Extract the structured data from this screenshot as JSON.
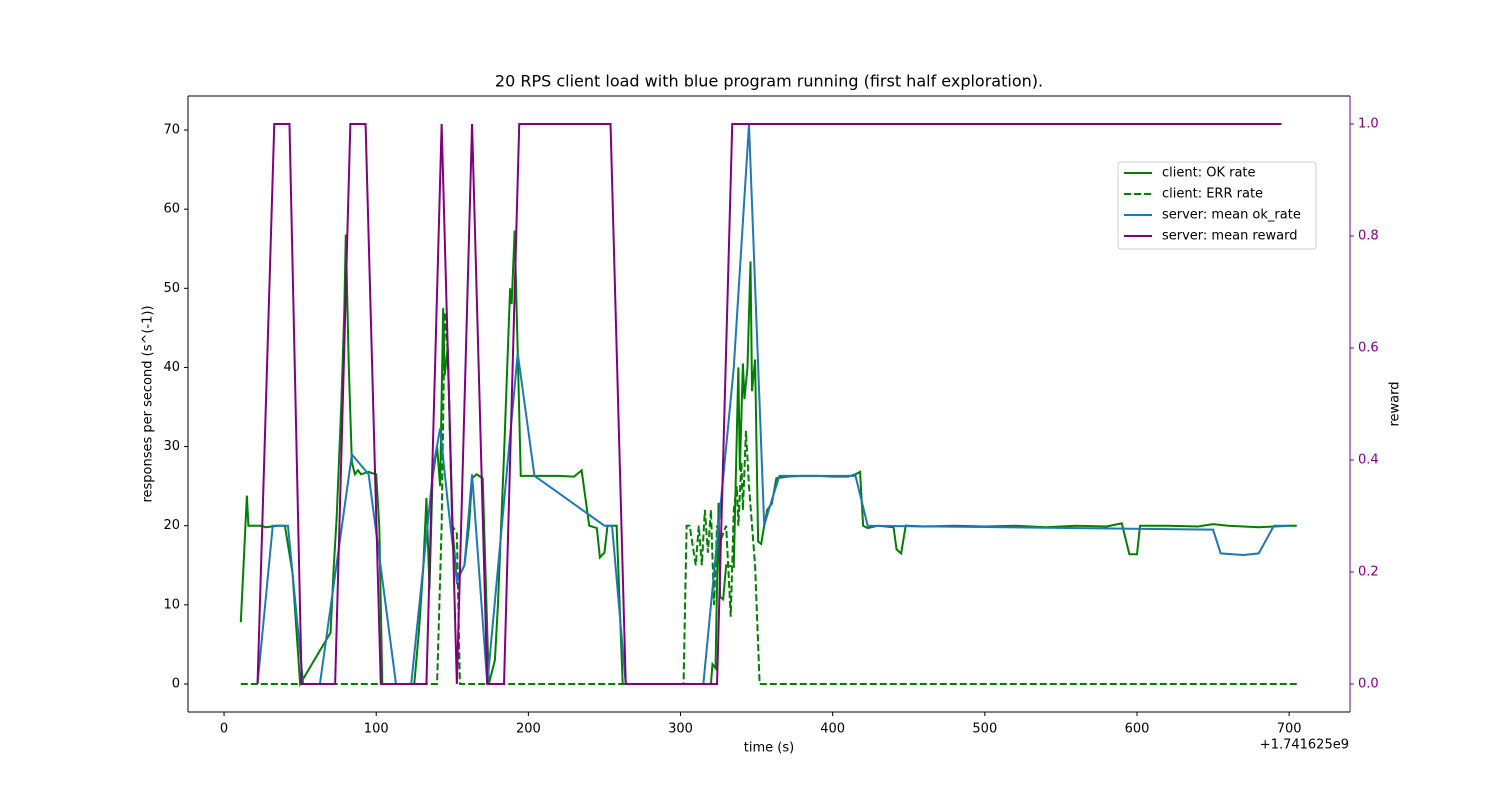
{
  "chart_data": {
    "type": "line",
    "title": "20 RPS client load with blue program running (first half exploration).",
    "x_label": "time (s)",
    "x_offset_label": "+1.741625e9",
    "y_label": "responses per second (s^(-1))",
    "y2_label": "reward",
    "xlim": [
      -23.7,
      740
    ],
    "xticks": [
      0,
      100,
      200,
      300,
      400,
      500,
      600,
      700
    ],
    "ylim": [
      -3.54,
      74.3
    ],
    "yticks": [
      0,
      10,
      20,
      30,
      40,
      50,
      60,
      70
    ],
    "y2lim": [
      -0.05,
      1.05
    ],
    "y2ticks": [
      {
        "value": 0,
        "label": "0.0"
      },
      0.2,
      0.4,
      0.6,
      0.8,
      {
        "value": 1,
        "label": "1.0"
      }
    ],
    "y2_color": "#800080",
    "grid": false,
    "legend": "upper right",
    "series": [
      {
        "name": "client: OK rate",
        "color": "#008000",
        "linestyle": "solid",
        "x": [
          11,
          15,
          16,
          25,
          27,
          35,
          40,
          45,
          50,
          70,
          72,
          74,
          77,
          79,
          80,
          82,
          84,
          86,
          88,
          90,
          95,
          98,
          100,
          102,
          104,
          125,
          128,
          131,
          133,
          135,
          137,
          140,
          142,
          144,
          145,
          147,
          150,
          153,
          158,
          161,
          163,
          166,
          170,
          174,
          178,
          180,
          184,
          188,
          189,
          191,
          193,
          195,
          200,
          210,
          220,
          230,
          235,
          240,
          245,
          247,
          250,
          252,
          258,
          262,
          320,
          321,
          323,
          325,
          326,
          328,
          330,
          335,
          338,
          339,
          341,
          342,
          344,
          346,
          347,
          349,
          351,
          353,
          355,
          357,
          360,
          363,
          370,
          380,
          390,
          400,
          410,
          415,
          418,
          420,
          423,
          430,
          440,
          442,
          445,
          448,
          460,
          480,
          500,
          520,
          540,
          560,
          580,
          590,
          595,
          600,
          602,
          620,
          640,
          650,
          660,
          680,
          700,
          705
        ],
        "values": [
          7.8,
          23.8,
          20,
          20,
          19.8,
          20,
          20,
          14,
          0,
          6.5,
          14.5,
          21,
          35,
          47,
          56.8,
          40,
          28,
          26.5,
          27,
          26.5,
          26.8,
          26.6,
          26.5,
          20,
          0,
          0,
          6.5,
          15,
          23.5,
          12,
          26,
          30,
          25,
          47.5,
          39,
          42.5,
          20,
          13,
          15,
          20,
          26,
          26.5,
          26,
          0,
          3,
          10,
          29,
          50,
          48,
          57.3,
          42,
          26.3,
          26.3,
          26.3,
          26.3,
          26.2,
          27,
          20,
          19.7,
          16,
          16.6,
          20,
          20,
          0,
          0,
          2.5,
          2,
          22.9,
          11,
          10.7,
          15,
          14.8,
          40,
          27,
          40.5,
          36,
          40,
          53.4,
          37,
          41,
          18,
          17.7,
          20,
          22,
          22.8,
          26,
          26.2,
          26.3,
          26.3,
          26.2,
          26.2,
          26.5,
          26.8,
          20,
          19.7,
          20,
          19.8,
          17,
          16.5,
          20,
          19.9,
          20,
          19.9,
          20,
          19.8,
          20,
          19.9,
          20.3,
          16.4,
          16.4,
          20,
          20,
          19.9,
          20.2,
          20,
          19.8,
          20,
          20
        ]
      },
      {
        "name": "client: ERR rate",
        "color": "#008000",
        "linestyle": "dashed",
        "x": [
          11,
          140,
          143,
          145,
          147,
          150,
          153,
          155,
          302,
          304,
          306,
          310,
          312,
          314,
          316,
          318,
          320,
          322,
          324,
          326,
          330,
          333,
          335,
          337,
          338,
          340,
          341,
          343,
          345,
          347,
          349,
          351,
          352,
          705
        ],
        "values": [
          0,
          0,
          20,
          47,
          42,
          20,
          19,
          0,
          0,
          20,
          20,
          15,
          20,
          15,
          22,
          16.6,
          22,
          10,
          20,
          18,
          20,
          8.5,
          22,
          25,
          20,
          28,
          22,
          32,
          25,
          20,
          15,
          5,
          0,
          0
        ]
      },
      {
        "name": "server: mean ok_rate",
        "color": "#1f77b4",
        "linestyle": "solid",
        "x": [
          22,
          32,
          42,
          52,
          63,
          84,
          95,
          113,
          123,
          138,
          142,
          147,
          153,
          158,
          163,
          173,
          193,
          204,
          250,
          255,
          264,
          315,
          335,
          345,
          355,
          358,
          365,
          415,
          423,
          650,
          655,
          670,
          680,
          690,
          700
        ],
        "values": [
          0,
          20,
          20,
          0,
          0,
          29,
          26.5,
          0,
          0,
          28,
          32.3,
          23,
          13,
          15,
          26.5,
          0,
          41.8,
          26.3,
          20,
          20,
          0,
          0,
          40,
          70.7,
          20,
          22,
          26.3,
          26.3,
          20,
          19.5,
          16.5,
          16.3,
          16.5,
          20,
          20
        ]
      },
      {
        "name": "server: mean reward",
        "color": "#800080",
        "linestyle": "solid",
        "axis": "y2",
        "x": [
          22,
          33,
          43,
          51,
          73,
          83,
          93,
          103,
          133,
          143,
          153,
          163,
          173,
          184,
          194,
          254,
          264,
          324,
          334,
          695
        ],
        "values": [
          0,
          1,
          1,
          0,
          0,
          1,
          1,
          0,
          0,
          1,
          0,
          1,
          0,
          0,
          1,
          1,
          0,
          0,
          1,
          1
        ]
      }
    ]
  }
}
